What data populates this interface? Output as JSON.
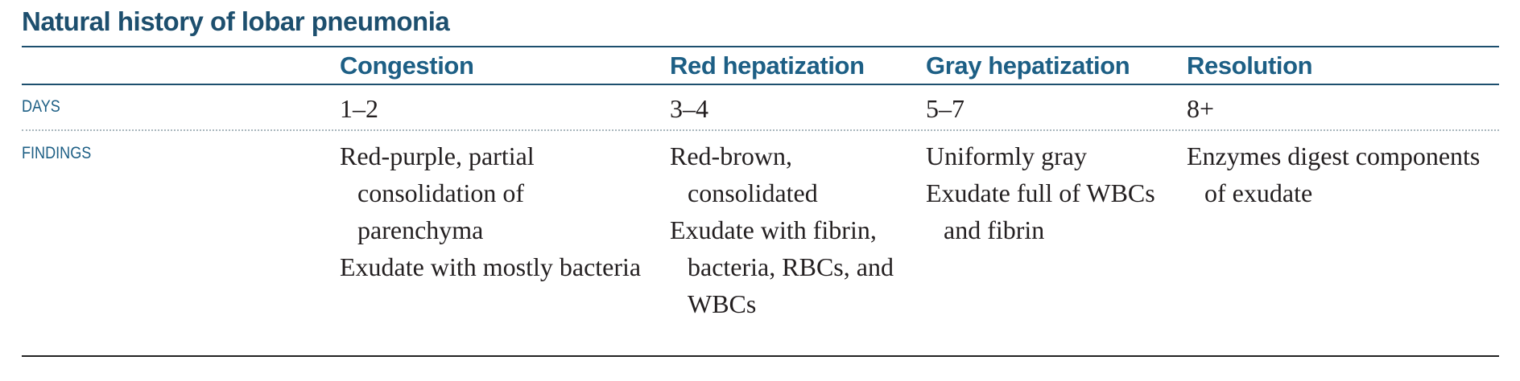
{
  "title": "Natural history of lobar pneumonia",
  "columns": [
    "Congestion",
    "Red hepatization",
    "Gray hepatization",
    "Resolution"
  ],
  "rows": {
    "days": {
      "label": "DAYS",
      "values": [
        "1–2",
        "3–4",
        "5–7",
        "8+"
      ]
    },
    "findings": {
      "label": "FINDINGS",
      "values": [
        [
          "Red-purple, partial consolidation of parenchyma",
          "Exudate with mostly bacteria"
        ],
        [
          "Red-brown, consolidated",
          "Exudate with fibrin, bacteria, RBCs, and WBCs"
        ],
        [
          "Uniformly gray",
          "Exudate full of WBCs and fibrin"
        ],
        [
          "Enzymes digest components of exudate"
        ]
      ]
    }
  },
  "colors": {
    "title": "#1d4f6e",
    "header": "#1d5f85",
    "body_text": "#231f20"
  }
}
